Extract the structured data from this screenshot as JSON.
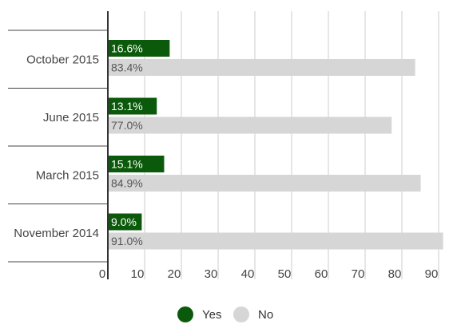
{
  "chart_data": {
    "type": "bar",
    "orientation": "horizontal",
    "categories": [
      "October 2015",
      "June 2015",
      "March 2015",
      "November 2014"
    ],
    "series": [
      {
        "name": "Yes",
        "values": [
          16.6,
          13.1,
          15.1,
          9.0
        ],
        "labels": [
          "16.6%",
          "13.1%",
          "15.1%",
          "9.0%"
        ],
        "color": "#0b5a0b",
        "label_color": "#ffffff"
      },
      {
        "name": "No",
        "values": [
          83.4,
          77.0,
          84.9,
          91.0
        ],
        "labels": [
          "83.4%",
          "77.0%",
          "84.9%",
          "91.0%"
        ],
        "color": "#d6d6d6",
        "label_color": "#555555"
      }
    ],
    "x_ticks": [
      "0",
      "10",
      "20",
      "30",
      "40",
      "50",
      "60",
      "70",
      "80",
      "90"
    ],
    "xlim": [
      0,
      91.5
    ],
    "grid": true,
    "legend_position": "bottom"
  }
}
